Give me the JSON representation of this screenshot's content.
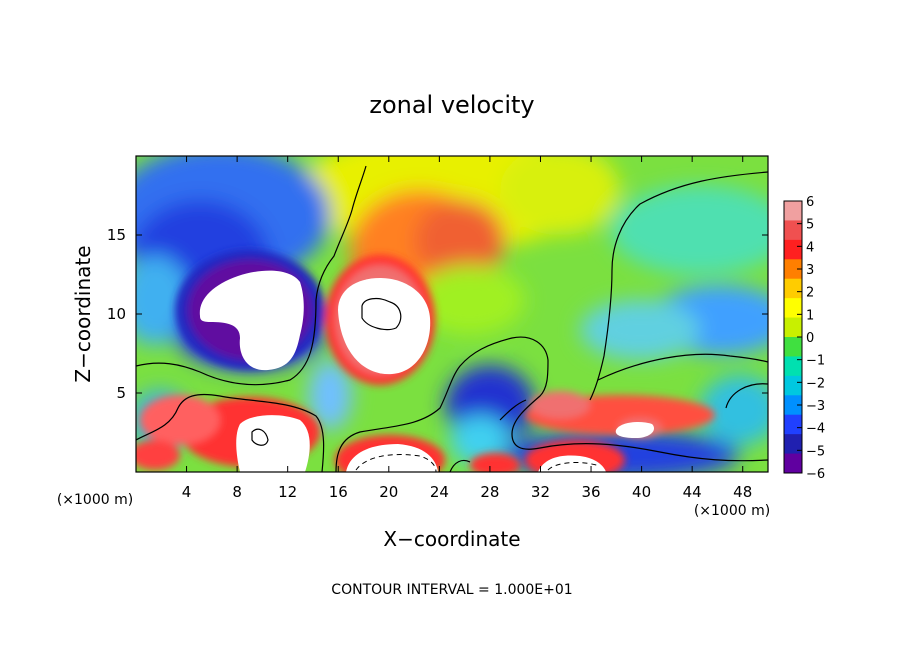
{
  "chart_data": {
    "type": "heatmap",
    "title": "zonal velocity",
    "xlabel": "X−coordinate",
    "ylabel": "Z−coordinate",
    "x_unit_left": "(×1000 m)",
    "x_unit_right": "(×1000 m)",
    "xlim": [
      0,
      50
    ],
    "ylim": [
      0,
      20
    ],
    "xticks": [
      4,
      8,
      12,
      16,
      20,
      24,
      28,
      32,
      36,
      40,
      44,
      48
    ],
    "yticks": [
      5,
      10,
      15
    ],
    "colorbar": {
      "ticks": [
        6,
        5,
        4,
        3,
        2,
        1,
        0,
        -1,
        -2,
        -3,
        -4,
        -5,
        -6
      ],
      "colors": [
        "#f0a0a0",
        "#f05050",
        "#ff2020",
        "#ff7f00",
        "#ffcc00",
        "#ffff00",
        "#c8f000",
        "#40e040",
        "#00e0b0",
        "#00c8e0",
        "#0090ff",
        "#2040ff",
        "#2020b0",
        "#6000a0"
      ],
      "range": [
        -6,
        6
      ]
    },
    "features": [
      {
        "kind": "negative-core",
        "x": 9,
        "z": 10.5
      },
      {
        "kind": "positive-core",
        "x": 20,
        "z": 10
      },
      {
        "kind": "positive-core",
        "x": 10,
        "z": 2
      },
      {
        "kind": "positive-core",
        "x": 20,
        "z": 0.5
      },
      {
        "kind": "positive-core",
        "x": 34,
        "z": 0.5
      },
      {
        "kind": "positive-band",
        "x": 38,
        "z": 3
      },
      {
        "kind": "negative-band",
        "x": 8,
        "z": 16
      },
      {
        "kind": "negative-band",
        "x": 46,
        "z": 10
      }
    ],
    "footer": "CONTOUR INTERVAL = 1.000E+01"
  }
}
